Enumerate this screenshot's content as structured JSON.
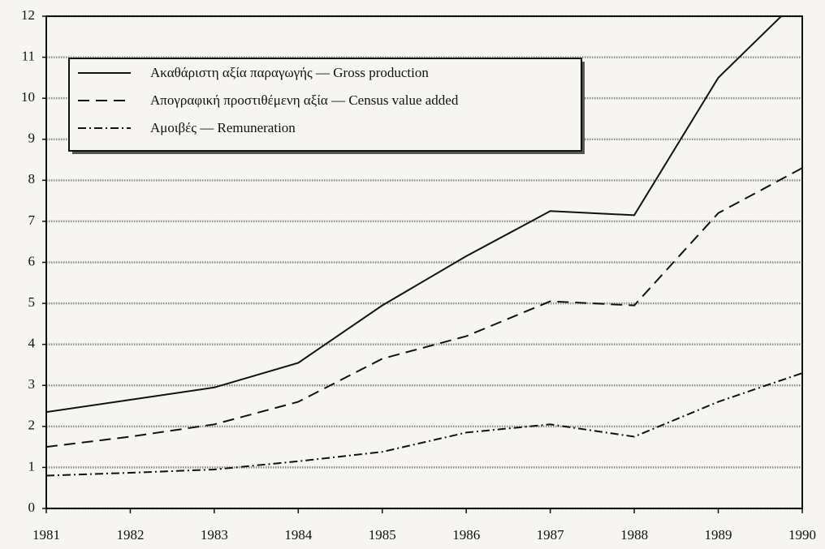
{
  "chart_data": {
    "type": "line",
    "x": [
      1981,
      1982,
      1983,
      1984,
      1985,
      1986,
      1987,
      1988,
      1989,
      1990
    ],
    "xlim": [
      1981,
      1990
    ],
    "xticks": [
      1981,
      1982,
      1983,
      1984,
      1985,
      1986,
      1987,
      1988,
      1989,
      1990
    ],
    "ylim": [
      0,
      12
    ],
    "yticks": [
      0,
      1,
      2,
      3,
      4,
      5,
      6,
      7,
      8,
      9,
      10,
      11,
      12
    ],
    "grid": true,
    "legend": "upper left",
    "series": [
      {
        "name": "Ακαθάριστη αξία παραγωγής — Gross production",
        "color": "#111111",
        "dash": "solid",
        "values": [
          2.35,
          2.65,
          2.95,
          3.55,
          4.95,
          6.15,
          7.25,
          7.15,
          10.5,
          12.5
        ]
      },
      {
        "name": "Απογραφική προστιθέμενη αξία — Census value added",
        "color": "#111111",
        "dash": "dashed",
        "values": [
          1.5,
          1.75,
          2.05,
          2.6,
          3.65,
          4.2,
          5.05,
          4.95,
          7.2,
          8.3
        ]
      },
      {
        "name": "Αμοιβές — Remuneration",
        "color": "#111111",
        "dash": "dashdot",
        "values": [
          0.8,
          0.87,
          0.95,
          1.15,
          1.38,
          1.85,
          2.05,
          1.75,
          2.6,
          3.3
        ]
      }
    ]
  }
}
